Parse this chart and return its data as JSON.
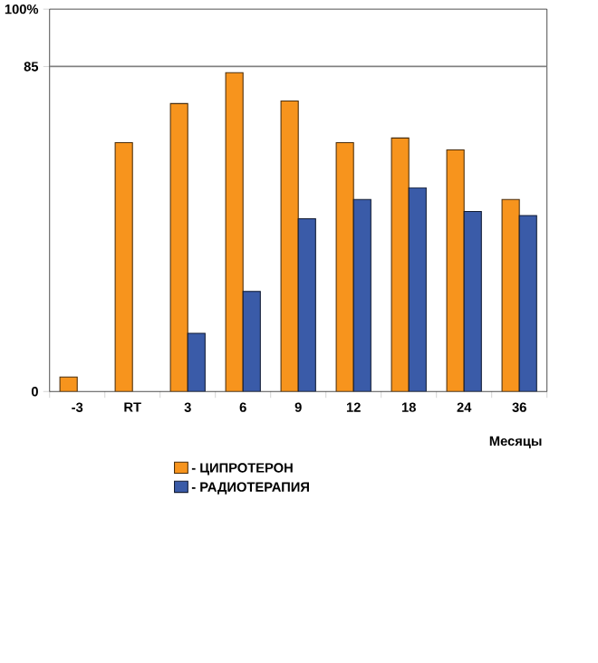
{
  "chart_data": {
    "type": "bar",
    "xlabel": "Месяцы",
    "categories": [
      "-3",
      "RT",
      "3",
      "6",
      "9",
      "12",
      "18",
      "24",
      "36"
    ],
    "series": [
      {
        "name": "- ЦИПРОТЕРОН",
        "color": "#f7941d",
        "values": [
          3.8,
          65.1,
          75.3,
          83.4,
          76.0,
          65.1,
          66.3,
          63.2,
          50.2
        ]
      },
      {
        "name": "- РАДИОТЕРАПИЯ",
        "color": "#3a5ba8",
        "values": [
          null,
          null,
          15.2,
          26.2,
          45.2,
          50.2,
          53.3,
          47.1,
          46.0
        ]
      }
    ],
    "ylim": [
      0,
      100
    ],
    "yticks": [
      0,
      85,
      {
        "value": 100,
        "label": "100%"
      }
    ],
    "ref_lines": [
      {
        "axis": "y",
        "value": 85,
        "color": "#808080"
      }
    ],
    "grid": false,
    "legend": "bottom"
  }
}
